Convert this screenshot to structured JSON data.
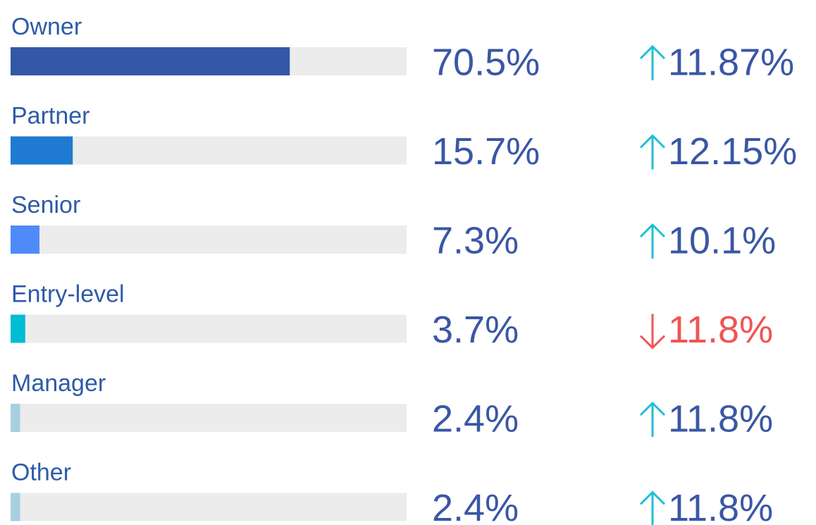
{
  "chart_data": {
    "type": "bar",
    "categories": [
      "Owner",
      "Partner",
      "Senior",
      "Entry-level",
      "Manager",
      "Other"
    ],
    "values": [
      70.5,
      15.7,
      7.3,
      3.7,
      2.4,
      2.4
    ],
    "value_labels": [
      "70.5%",
      "15.7%",
      "7.3%",
      "3.7%",
      "2.4%",
      "2.4%"
    ],
    "colors": [
      "#3358a8",
      "#1f7bd1",
      "#4f8bf8",
      "#00bcd4",
      "#a8cfe0",
      "#a8cfe0"
    ],
    "changes": [
      11.87,
      12.15,
      10.1,
      11.8,
      11.8,
      11.8
    ],
    "change_labels": [
      "11.87%",
      "12.15%",
      "10.1%",
      "11.8%",
      "11.8%",
      "11.8%"
    ],
    "change_directions": [
      "up",
      "up",
      "up",
      "down",
      "up",
      "up"
    ],
    "up_color": "#1dbfd6",
    "down_color": "#f05454",
    "xlim": [
      0,
      100
    ]
  }
}
